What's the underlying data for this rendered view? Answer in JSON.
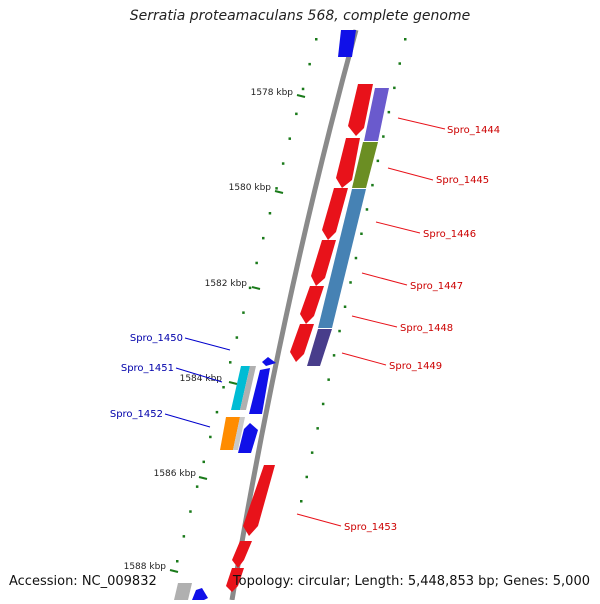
{
  "title": "Serratia proteamaculans 568, complete genome",
  "accession": "Accession: NC_009832",
  "summary": "Topology: circular; Length: 5,448,853 bp; Genes: 5,000",
  "kbp_labels": [
    "1578 kbp",
    "1580 kbp",
    "1582 kbp",
    "1584 kbp",
    "1586 kbp",
    "1588 kbp"
  ],
  "gene_labels_right": [
    "Spro_1444",
    "Spro_1445",
    "Spro_1446",
    "Spro_1447",
    "Spro_1448",
    "Spro_1449",
    "Spro_1453"
  ],
  "gene_labels_left": [
    "Spro_1450",
    "Spro_1451",
    "Spro_1452"
  ],
  "colors": {
    "backbone": "#8a8a8a",
    "reverse_gene": "#e8121a",
    "forward_gene": "#1010e8",
    "right_label": "#cc0000",
    "left_label": "#0000aa",
    "tick": "#1a7a1a",
    "spro_1444": "#6a5acd",
    "spro_1445": "#6b8e23",
    "spro_1446": "#4682b4",
    "spro_1449": "#483d8b",
    "spro_1451": "#00bcd4",
    "spro_1452": "#ff8c00",
    "grey_gene": "#b0b0b0"
  }
}
